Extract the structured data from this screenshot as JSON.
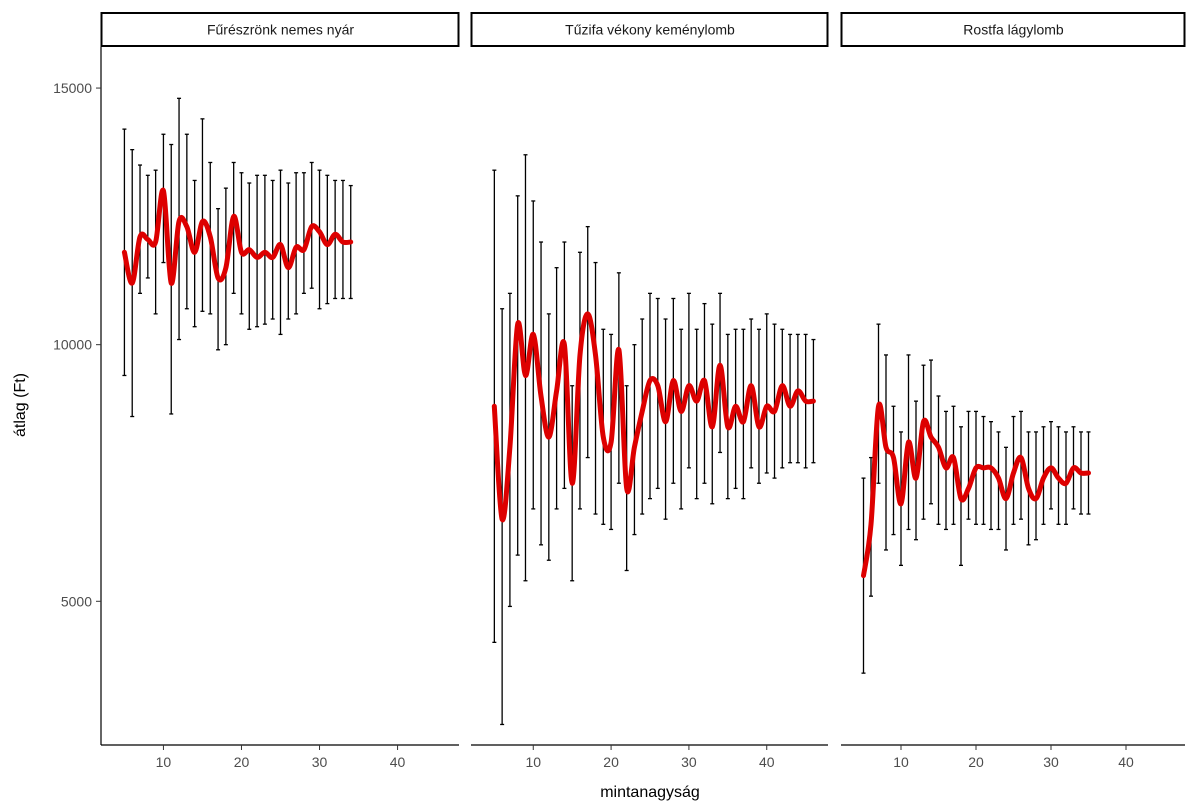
{
  "chart_data": {
    "type": "line",
    "xlabel": "mintanagyság",
    "ylabel": "átlag (Ft)",
    "xlim": [
      2,
      48
    ],
    "ylim": [
      2200,
      15800
    ],
    "x_ticks": [
      10,
      20,
      30,
      40
    ],
    "y_ticks": [
      5000,
      10000,
      15000
    ],
    "grid": false,
    "line_color": "#dd0000",
    "errorbar_color": "#000000",
    "panels": [
      {
        "title": "Fűrészrönk nemes nyár",
        "series": [
          {
            "x": [
              5,
              6,
              7,
              8,
              9,
              10,
              11,
              12,
              13,
              14,
              15,
              16,
              17,
              18,
              19,
              20,
              21,
              22,
              23,
              24,
              25,
              26,
              27,
              28,
              29,
              30,
              31,
              32,
              33,
              34
            ],
            "y": [
              11800,
              11200,
              12100,
              12050,
              12000,
              13000,
              11200,
              12400,
              12300,
              11800,
              12400,
              12100,
              11300,
              11500,
              12500,
              11800,
              11850,
              11700,
              11800,
              11700,
              11950,
              11500,
              11900,
              11850,
              12300,
              12200,
              11950,
              12150,
              12000,
              12000
            ],
            "lower": [
              9400,
              8600,
              11000,
              11300,
              10600,
              11600,
              8650,
              10100,
              10700,
              10350,
              10650,
              10600,
              9900,
              10000,
              11000,
              10600,
              10300,
              10350,
              10400,
              10500,
              10200,
              10500,
              10600,
              11000,
              11100,
              10700,
              10800,
              10900,
              10900,
              10900
            ],
            "upper": [
              14200,
              13800,
              13500,
              13300,
              13400,
              14100,
              13900,
              14800,
              14100,
              13200,
              14400,
              13550,
              12650,
              13050,
              13550,
              13350,
              13150,
              13300,
              13300,
              13200,
              13400,
              13150,
              13350,
              13350,
              13550,
              13400,
              13300,
              13200,
              13200,
              13100
            ]
          }
        ]
      },
      {
        "title": "Tűzifa vékony keménylomb",
        "series": [
          {
            "x": [
              5,
              6,
              7,
              8,
              9,
              10,
              11,
              12,
              13,
              14,
              15,
              16,
              17,
              18,
              19,
              20,
              21,
              22,
              23,
              24,
              25,
              26,
              27,
              28,
              29,
              30,
              31,
              32,
              33,
              34,
              35,
              36,
              37,
              38,
              39,
              40,
              41,
              42,
              43,
              44,
              45,
              46
            ],
            "y": [
              8800,
              6600,
              8000,
              10400,
              9400,
              10200,
              9000,
              8200,
              9100,
              10000,
              7300,
              9800,
              10600,
              9800,
              8200,
              8100,
              9900,
              7200,
              8000,
              8700,
              9300,
              9200,
              8500,
              9300,
              8700,
              9200,
              8900,
              9300,
              8400,
              9600,
              8400,
              8800,
              8500,
              9200,
              8400,
              8800,
              8700,
              9200,
              8800,
              9100,
              8900,
              8900
            ],
            "lower": [
              4200,
              2600,
              4900,
              5900,
              5400,
              6800,
              6100,
              5800,
              6800,
              7200,
              5400,
              6800,
              7800,
              6700,
              6500,
              6400,
              7300,
              5600,
              6300,
              6700,
              7000,
              7200,
              6600,
              7300,
              6800,
              7600,
              7000,
              7300,
              6900,
              7900,
              7000,
              7200,
              7000,
              7600,
              7300,
              7500,
              7400,
              7600,
              7700,
              7700,
              7600,
              7700
            ],
            "upper": [
              13400,
              10700,
              11000,
              12900,
              13700,
              12800,
              12000,
              10600,
              11500,
              12000,
              9200,
              11800,
              12300,
              11600,
              10300,
              10200,
              11400,
              9200,
              10000,
              10500,
              11000,
              10900,
              10500,
              10900,
              10300,
              11000,
              10300,
              10800,
              10400,
              11000,
              10200,
              10300,
              10300,
              10500,
              10300,
              10600,
              10400,
              10300,
              10200,
              10200,
              10200,
              10100
            ]
          }
        ]
      },
      {
        "title": "Rostfa lágylomb",
        "series": [
          {
            "x": [
              5,
              6,
              7,
              8,
              9,
              10,
              11,
              12,
              13,
              14,
              15,
              16,
              17,
              18,
              19,
              20,
              21,
              22,
              23,
              24,
              25,
              26,
              27,
              28,
              29,
              30,
              31,
              32,
              33,
              34,
              35
            ],
            "y": [
              5500,
              6500,
              8800,
              8000,
              7800,
              6900,
              8100,
              7400,
              8500,
              8200,
              8000,
              7600,
              7800,
              7000,
              7200,
              7600,
              7600,
              7600,
              7400,
              7000,
              7500,
              7800,
              7200,
              7000,
              7400,
              7600,
              7400,
              7300,
              7600,
              7500,
              7500
            ],
            "lower": [
              3600,
              5100,
              7300,
              6000,
              6300,
              5700,
              6400,
              6200,
              6600,
              6900,
              6500,
              6400,
              6500,
              5700,
              6600,
              6500,
              6500,
              6400,
              6400,
              6000,
              6500,
              6600,
              6100,
              6200,
              6500,
              6800,
              6500,
              6500,
              6800,
              6700,
              6700
            ],
            "upper": [
              7400,
              7800,
              10400,
              9800,
              8800,
              8300,
              9800,
              8900,
              9600,
              9700,
              9000,
              8700,
              8800,
              8400,
              8700,
              8700,
              8600,
              8500,
              8300,
              8000,
              8600,
              8700,
              8300,
              8300,
              8400,
              8500,
              8400,
              8300,
              8400,
              8300,
              8300
            ]
          }
        ]
      }
    ]
  }
}
